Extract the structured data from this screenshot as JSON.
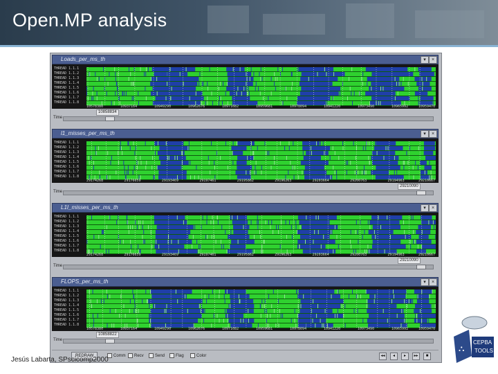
{
  "slide": {
    "title": "Open.MP analysis",
    "footer": "Jesús Labarta, SPscicomp2000"
  },
  "colors": {
    "green": "#2fd12f",
    "blue": "#1f3fa8",
    "lane_line": "#0d5a0d",
    "title_bar": "#4b5e91"
  },
  "panels": [
    {
      "name": "Loads_per_ms_th",
      "threads": [
        "THREAD 1.1.1",
        "THREAD 1.1.2",
        "THREAD 1.1.3",
        "THREAD 1.1.4",
        "THREAD 1.1.5",
        "THREAD 1.1.6",
        "THREAD 1.1.7",
        "THREAD 1.1.8"
      ],
      "ticks": [
        "10578380",
        "10937164",
        "10949290",
        "10962676",
        "10971682",
        "10959681",
        "10978094",
        "10941220",
        "10973490",
        "10965992",
        "10959470"
      ],
      "time_value": "10858834",
      "blue_ratio": 0.55
    },
    {
      "name": "l1_misses_per_ms_th",
      "threads": [
        "THREAD 1.1.1",
        "THREAD 1.1.2",
        "THREAD 1.1.3",
        "THREAD 1.1.4",
        "THREAD 1.1.5",
        "THREAD 1.1.6",
        "THREAD 1.1.7",
        "THREAD 1.1.8"
      ],
      "ticks": [
        "29174268",
        "29176659",
        "29193469",
        "29197461",
        "29195862",
        "29196263",
        "29203664",
        "29200763",
        "29194963",
        "29210667"
      ],
      "time_value": "29210090",
      "blue_ratio": 0.18
    },
    {
      "name": "L1I_misses_per_ms_th",
      "threads": [
        "THREAD 1.1.1",
        "THREAD 1.1.2",
        "THREAD 1.1.3",
        "THREAD 1.1.4",
        "THREAD 1.1.5",
        "THREAD 1.1.6",
        "THREAD 1.1.7",
        "THREAD 1.1.8"
      ],
      "ticks": [
        "29174268",
        "29176659",
        "29193469",
        "29197461",
        "29195862",
        "29196263",
        "29203664",
        "29200763",
        "29194963",
        "29210667"
      ],
      "time_value": "29210090",
      "blue_ratio": 0.45
    },
    {
      "name": "FLOPS_per_ms_th",
      "threads": [
        "THREAD 1.1.1",
        "THREAD 1.1.2",
        "THREAD 1.1.3",
        "THREAD 1.1.4",
        "THREAD 1.1.5",
        "THREAD 1.1.6",
        "THREAD 1.1.7",
        "THREAD 1.1.8"
      ],
      "ticks": [
        "10578380",
        "10937164",
        "10949290",
        "10962676",
        "10971682",
        "10959681",
        "10978094",
        "10941220",
        "10973490",
        "10965992",
        "10959470"
      ],
      "time_value": "10858822",
      "blue_ratio": 0.6
    }
  ],
  "controls": {
    "time_label": "Time",
    "redraw": "REDRAW",
    "checkboxes": [
      "Comm",
      "Recv",
      "Send",
      "Flag",
      "Color"
    ],
    "window_buttons": [
      "▾",
      "×"
    ],
    "nav_buttons": [
      "◂◂",
      "◂",
      "▸",
      "▸▸",
      "■"
    ]
  },
  "logo": {
    "line1": "CEPBA",
    "line2": "TOOLS"
  }
}
